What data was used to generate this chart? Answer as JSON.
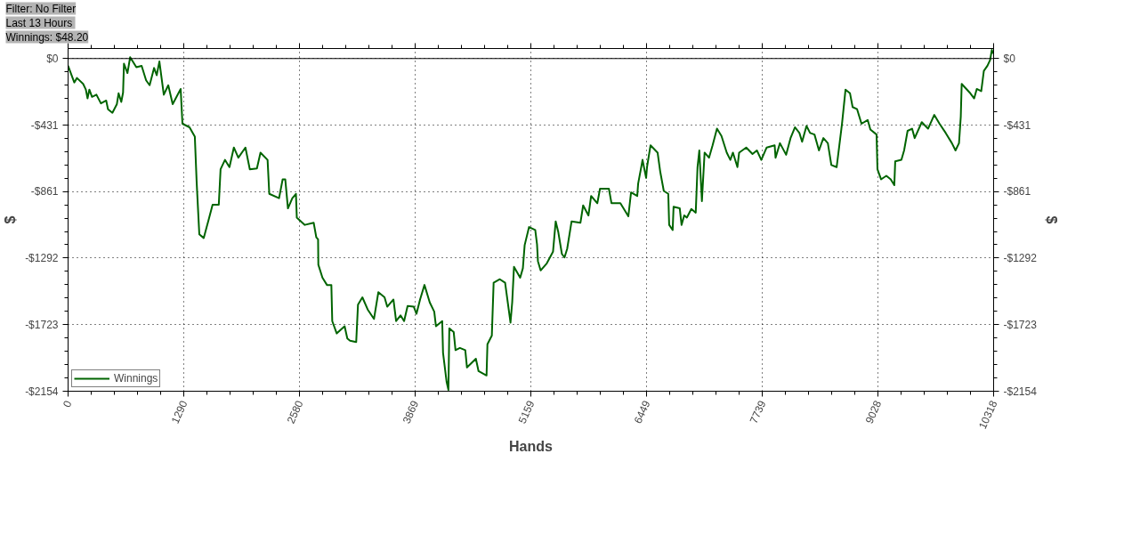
{
  "chart_data": {
    "type": "line",
    "xlabel": "Hands",
    "ylabel": "$",
    "y2label": "$",
    "annotations": [
      "Filter: No Filter",
      "Last  13 Hours",
      "Winnings: $48.20"
    ],
    "xlim": [
      0,
      10318
    ],
    "xticks": [
      0,
      1290,
      2580,
      3869,
      5159,
      6449,
      7739,
      9028,
      10318
    ],
    "ylim": [
      -2154,
      65
    ],
    "yticks": [
      {
        "value": 0,
        "label": "$0"
      },
      {
        "value": -431,
        "label": "-$431"
      },
      {
        "value": -861,
        "label": "-$861"
      },
      {
        "value": -1292,
        "label": "-$1292"
      },
      {
        "value": -1723,
        "label": "-$1723"
      },
      {
        "value": -2154,
        "label": "-$2154"
      }
    ],
    "y2lim": [
      -2154,
      65
    ],
    "y2ticks": [
      {
        "value": 0,
        "label": "$0"
      },
      {
        "value": -431,
        "label": "-$431"
      },
      {
        "value": -861,
        "label": "-$861"
      },
      {
        "value": -1292,
        "label": "-$1292"
      },
      {
        "value": -1723,
        "label": "-$1723"
      },
      {
        "value": -2154,
        "label": "-$2154"
      }
    ],
    "ref_lines": [
      {
        "axis": "y",
        "value": 0,
        "color": "#000000"
      }
    ],
    "grid": true,
    "legend": "bottom left",
    "marker": "none",
    "line_style": "solid",
    "series": [
      {
        "name": "Winnings",
        "color": "#006400",
        "x": [
          0,
          69,
          99,
          168,
          198,
          217,
          237,
          267,
          316,
          366,
          425,
          445,
          494,
          544,
          563,
          593,
          613,
          623,
          662,
          692,
          761,
          820,
          870,
          909,
          959,
          988,
          1018,
          1067,
          1117,
          1166,
          1255,
          1275,
          1354,
          1413,
          1433,
          1463,
          1512,
          1562,
          1611,
          1680,
          1700,
          1749,
          1799,
          1848,
          1898,
          1977,
          2026,
          2105,
          2145,
          2224,
          2243,
          2352,
          2392,
          2421,
          2451,
          2500,
          2540,
          2550,
          2639,
          2738,
          2767,
          2787,
          2790,
          2836,
          2886,
          2935,
          2945,
          2995,
          3083,
          3113,
          3143,
          3212,
          3232,
          3281,
          3340,
          3410,
          3459,
          3528,
          3558,
          3627,
          3657,
          3706,
          3746,
          3785,
          3854,
          3884,
          3924,
          3973,
          4032,
          4082,
          4101,
          4171,
          4180,
          4220,
          4240,
          4250,
          4299,
          4319,
          4368,
          4428,
          4447,
          4546,
          4576,
          4665,
          4675,
          4724,
          4744,
          4813,
          4872,
          4932,
          4951,
          4971,
          5040,
          5070,
          5090,
          5139,
          5208,
          5228,
          5238,
          5268,
          5337,
          5406,
          5436,
          5465,
          5505,
          5534,
          5564,
          5613,
          5712,
          5742,
          5801,
          5831,
          5900,
          5930,
          6029,
          6058,
          6157,
          6246,
          6276,
          6345,
          6355,
          6394,
          6404,
          6444,
          6454,
          6493,
          6572,
          6602,
          6641,
          6691,
          6701,
          6740,
          6750,
          6819,
          6839,
          6869,
          6898,
          6948,
          6997,
          7017,
          7037,
          7066,
          7096,
          7145,
          7185,
          7234,
          7284,
          7343,
          7383,
          7412,
          7462,
          7481,
          7560,
          7630,
          7679,
          7728,
          7788,
          7877,
          7887,
          7936,
          8005,
          8054,
          8104,
          8153,
          8183,
          8232,
          8272,
          8321,
          8371,
          8420,
          8470,
          8509,
          8568,
          8598,
          8628,
          8667,
          8717,
          8746,
          8796,
          8845,
          8914,
          8944,
          9013,
          9023,
          9063,
          9122,
          9171,
          9211,
          9221,
          9290,
          9320,
          9359,
          9409,
          9438,
          9517,
          9587,
          9656,
          9715,
          9784,
          9853,
          9893,
          9932,
          9952,
          9962,
          10051,
          10101,
          10130,
          10180,
          10209,
          10249,
          10279,
          10298,
          10308,
          10318
        ],
        "values": [
          -47,
          -155,
          -126,
          -164,
          -201,
          -258,
          -201,
          -248,
          -234,
          -290,
          -272,
          -328,
          -351,
          -295,
          -225,
          -281,
          -220,
          -33,
          -94,
          9,
          -56,
          -47,
          -141,
          -173,
          -61,
          -108,
          -19,
          -234,
          -173,
          -295,
          -197,
          -422,
          -445,
          -506,
          -796,
          -1138,
          -1162,
          -1054,
          -946,
          -946,
          -717,
          -656,
          -703,
          -576,
          -642,
          -576,
          -717,
          -712,
          -609,
          -656,
          -876,
          -904,
          -782,
          -782,
          -970,
          -904,
          -876,
          -1030,
          -1077,
          -1063,
          -1157,
          -1171,
          -1335,
          -1419,
          -1466,
          -1466,
          -1700,
          -1780,
          -1733,
          -1813,
          -1827,
          -1836,
          -1593,
          -1546,
          -1625,
          -1686,
          -1513,
          -1546,
          -1607,
          -1560,
          -1700,
          -1663,
          -1700,
          -1602,
          -1607,
          -1653,
          -1560,
          -1466,
          -1579,
          -1639,
          -1733,
          -1700,
          -1906,
          -2094,
          -2145,
          -1747,
          -1771,
          -1888,
          -1874,
          -1888,
          -2000,
          -1944,
          -2024,
          -2052,
          -1850,
          -1794,
          -1452,
          -1429,
          -1452,
          -1710,
          -1579,
          -1349,
          -1419,
          -1358,
          -1208,
          -1091,
          -1110,
          -1204,
          -1312,
          -1372,
          -1326,
          -1251,
          -1054,
          -1124,
          -1265,
          -1288,
          -1232,
          -1054,
          -1063,
          -951,
          -1016,
          -890,
          -937,
          -843,
          -843,
          -937,
          -937,
          -1021,
          -867,
          -890,
          -810,
          -689,
          -656,
          -773,
          -703,
          -562,
          -609,
          -735,
          -857,
          -876,
          -1077,
          -1110,
          -960,
          -970,
          -1077,
          -1016,
          -1030,
          -974,
          -998,
          -703,
          -595,
          -923,
          -609,
          -642,
          -562,
          -454,
          -501,
          -609,
          -656,
          -609,
          -703,
          -609,
          -576,
          -618,
          -595,
          -656,
          -576,
          -562,
          -642,
          -548,
          -623,
          -515,
          -445,
          -482,
          -539,
          -436,
          -482,
          -492,
          -595,
          -515,
          -548,
          -689,
          -703,
          -562,
          -422,
          -201,
          -225,
          -314,
          -328,
          -422,
          -398,
          -459,
          -492,
          -717,
          -782,
          -759,
          -782,
          -820,
          -665,
          -656,
          -595,
          -468,
          -454,
          -515,
          -412,
          -454,
          -365,
          -422,
          -482,
          -548,
          -595,
          -548,
          -375,
          -164,
          -220,
          -258,
          -197,
          -211,
          -80,
          -47,
          -9,
          56,
          37,
          48
        ]
      }
    ]
  }
}
